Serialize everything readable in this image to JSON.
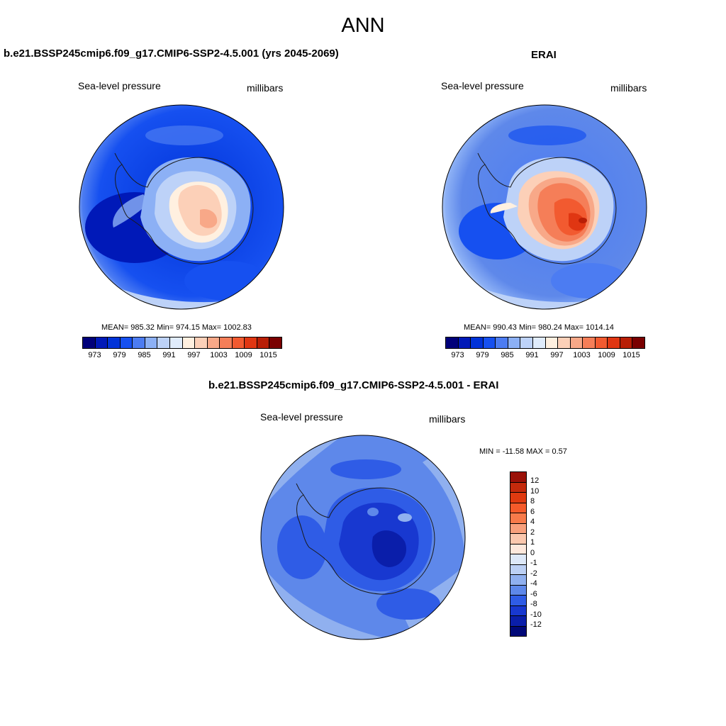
{
  "title": "ANN",
  "panels": {
    "model": {
      "title": "b.e21.BSSP245cmip6.f09_g17.CMIP6-SSP2-4.5.001 (yrs 2045-2069)",
      "left_label": "Sea-level pressure",
      "right_label": "millibars",
      "stats": "MEAN= 985.32  Min= 974.15  Max= 1002.83"
    },
    "obs": {
      "title": "ERAI",
      "left_label": "Sea-level pressure",
      "right_label": "millibars",
      "stats": "MEAN= 990.43  Min= 980.24  Max= 1014.14"
    },
    "diff": {
      "title": "b.e21.BSSP245cmip6.f09_g17.CMIP6-SSP2-4.5.001 - ERAI",
      "left_label": "Sea-level pressure",
      "right_label": "millibars",
      "stats": "MIN = -11.58 MAX =   0.57"
    }
  },
  "colorbar_main": {
    "colors": [
      "#00007a",
      "#0019b8",
      "#0032d8",
      "#1650f0",
      "#4c7cf2",
      "#8cb0f5",
      "#bdd2f8",
      "#e0ecfc",
      "#fff0e0",
      "#fcd0b8",
      "#f8a888",
      "#f57e58",
      "#f25a30",
      "#e03612",
      "#b81e06",
      "#7a0000"
    ],
    "ticks": [
      "973",
      "979",
      "985",
      "991",
      "997",
      "1003",
      "1009",
      "1015"
    ]
  },
  "colorbar_diff": {
    "colors": [
      "#9a1108",
      "#c42a0c",
      "#e03a10",
      "#f55a2a",
      "#f77a4a",
      "#f8a07c",
      "#fbc8ae",
      "#fde8dc",
      "#dde8f8",
      "#bcd0f4",
      "#90b0ef",
      "#5e88ea",
      "#2f5ce6",
      "#1838d0",
      "#0a1eaa",
      "#000878"
    ],
    "ticks": [
      "12",
      "10",
      "8",
      "6",
      "4",
      "2",
      "1",
      "0",
      "-1",
      "-2",
      "-4",
      "-6",
      "-8",
      "-10",
      "-12"
    ]
  },
  "chart_data": [
    {
      "type": "heatmap",
      "title": "b.e21.BSSP245cmip6.f09_g17.CMIP6-SSP2-4.5.001 (yrs 2045-2069)",
      "variable": "Sea-level pressure",
      "units": "millibars",
      "projection": "south polar stereographic",
      "mean": 985.32,
      "min": 974.15,
      "max": 1002.83,
      "levels": [
        973,
        976,
        979,
        982,
        985,
        988,
        991,
        994,
        997,
        1000,
        1003,
        1006,
        1009,
        1012,
        1015
      ]
    },
    {
      "type": "heatmap",
      "title": "ERAI",
      "variable": "Sea-level pressure",
      "units": "millibars",
      "projection": "south polar stereographic",
      "mean": 990.43,
      "min": 980.24,
      "max": 1014.14,
      "levels": [
        973,
        976,
        979,
        982,
        985,
        988,
        991,
        994,
        997,
        1000,
        1003,
        1006,
        1009,
        1012,
        1015
      ]
    },
    {
      "type": "heatmap",
      "title": "b.e21.BSSP245cmip6.f09_g17.CMIP6-SSP2-4.5.001 - ERAI",
      "variable": "Sea-level pressure",
      "units": "millibars",
      "projection": "south polar stereographic",
      "min": -11.58,
      "max": 0.57,
      "levels": [
        12,
        10,
        8,
        6,
        4,
        2,
        1,
        0,
        -1,
        -2,
        -4,
        -6,
        -8,
        -10,
        -12
      ]
    }
  ]
}
